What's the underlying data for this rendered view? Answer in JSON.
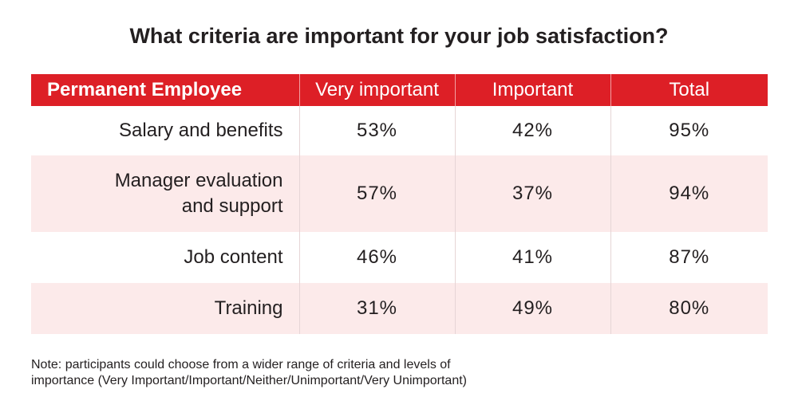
{
  "title": "What criteria are important for your job satisfaction?",
  "table": {
    "headers": [
      "Permanent Employee",
      "Very important",
      "Important",
      "Total"
    ],
    "rows": [
      {
        "label_lines": [
          "Salary and benefits"
        ],
        "values": [
          "53%",
          "42%",
          "95%"
        ]
      },
      {
        "label_lines": [
          "Manager evaluation",
          "and support"
        ],
        "values": [
          "57%",
          "37%",
          "94%"
        ]
      },
      {
        "label_lines": [
          "Job content"
        ],
        "values": [
          "46%",
          "41%",
          "87%"
        ]
      },
      {
        "label_lines": [
          "Training"
        ],
        "values": [
          "31%",
          "49%",
          "80%"
        ]
      }
    ]
  },
  "note": {
    "line1": "Note: participants could choose from a wider range of criteria and levels of",
    "line2": "importance  (Very Important/Important/Neither/Unimportant/Very Unimportant)"
  },
  "colors": {
    "header_bg": "#dd1f26",
    "alt_row_bg": "#fceaea",
    "text": "#231f20"
  },
  "chart_data": {
    "type": "table",
    "title": "What criteria are important for your job satisfaction?",
    "columns": [
      "Permanent Employee",
      "Very important",
      "Important",
      "Total"
    ],
    "categories": [
      "Salary and benefits",
      "Manager evaluation and support",
      "Job content",
      "Training"
    ],
    "series": [
      {
        "name": "Very important",
        "values": [
          53,
          57,
          46,
          31
        ]
      },
      {
        "name": "Important",
        "values": [
          42,
          37,
          41,
          49
        ]
      },
      {
        "name": "Total",
        "values": [
          95,
          94,
          87,
          80
        ]
      }
    ]
  }
}
